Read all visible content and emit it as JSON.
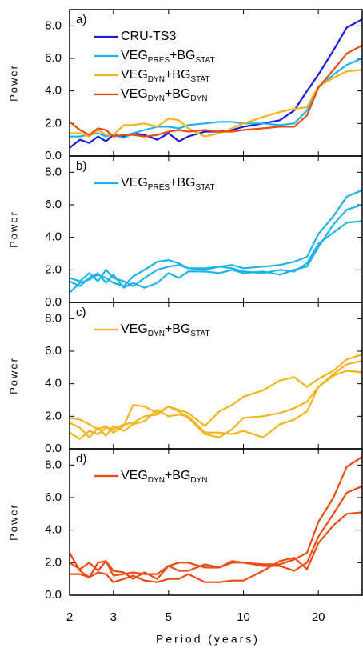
{
  "chart_data": [
    {
      "type": "line",
      "panel_label": "a)",
      "ylabel": "Power",
      "xscale": "log",
      "xlim": [
        2,
        30
      ],
      "ylim": [
        0,
        9
      ],
      "yticks": [
        {
          "value": 0,
          "label": "0.0"
        },
        {
          "value": 2,
          "label": "2.0"
        },
        {
          "value": 4,
          "label": "4.0"
        },
        {
          "value": 6,
          "label": "6.0"
        },
        {
          "value": 8,
          "label": "8.0"
        }
      ],
      "x": [
        2,
        2.2,
        2.4,
        2.6,
        2.8,
        3,
        3.3,
        3.6,
        4,
        4.5,
        5,
        5.5,
        6,
        7,
        8,
        9,
        10,
        12,
        14,
        16,
        18,
        20,
        23,
        26,
        30
      ],
      "legend": [
        {
          "parts": [
            "CRU-TS3"
          ],
          "color": "#1a1adc"
        },
        {
          "parts": [
            "VEG",
            "PRES",
            "+BG",
            "STAT"
          ],
          "color": "#1eb4ea"
        },
        {
          "parts": [
            "VEG",
            "DYN",
            "+BG",
            "STAT"
          ],
          "color": "#f5b41e"
        },
        {
          "parts": [
            "VEG",
            "DYN",
            "+BG",
            "DYN"
          ],
          "color": "#ee4a14"
        }
      ],
      "series": [
        {
          "color": "#1a1adc",
          "values": [
            0.5,
            1.0,
            0.8,
            1.2,
            0.9,
            1.3,
            1.2,
            1.4,
            1.3,
            1.0,
            1.4,
            0.9,
            1.2,
            1.5,
            1.5,
            1.6,
            1.8,
            2.0,
            2.2,
            2.8,
            4.0,
            5.0,
            6.5,
            7.9,
            8.4
          ]
        },
        {
          "color": "#1eb4ea",
          "values": [
            1.2,
            1.2,
            1.3,
            1.4,
            1.2,
            1.3,
            1.1,
            1.4,
            1.6,
            1.8,
            1.8,
            1.7,
            1.9,
            2.0,
            2.1,
            2.1,
            2.0,
            2.0,
            1.9,
            2.0,
            2.8,
            4.2,
            5.0,
            5.6,
            6.0
          ]
        },
        {
          "color": "#f5b41e",
          "values": [
            1.4,
            1.4,
            1.2,
            1.6,
            1.3,
            1.3,
            1.9,
            1.9,
            2.0,
            1.8,
            2.3,
            2.2,
            1.7,
            1.2,
            1.4,
            1.7,
            2.0,
            2.4,
            2.7,
            2.9,
            3.0,
            4.3,
            4.8,
            5.2,
            5.3
          ]
        },
        {
          "color": "#ee4a14",
          "values": [
            2.1,
            1.6,
            1.3,
            1.7,
            1.6,
            1.2,
            1.3,
            1.3,
            1.2,
            1.3,
            1.5,
            1.6,
            1.5,
            1.6,
            1.5,
            1.5,
            1.6,
            1.7,
            1.8,
            1.8,
            2.5,
            4.2,
            5.3,
            6.3,
            6.8
          ]
        }
      ]
    },
    {
      "type": "line",
      "panel_label": "b)",
      "ylabel": "Power",
      "xscale": "log",
      "xlim": [
        2,
        30
      ],
      "ylim": [
        0,
        9
      ],
      "yticks": [
        {
          "value": 0,
          "label": "0.0"
        },
        {
          "value": 2,
          "label": "2.0"
        },
        {
          "value": 4,
          "label": "4.0"
        },
        {
          "value": 6,
          "label": "6.0"
        },
        {
          "value": 8,
          "label": "8.0"
        }
      ],
      "x": [
        2,
        2.2,
        2.4,
        2.6,
        2.8,
        3,
        3.3,
        3.6,
        4,
        4.5,
        5,
        5.5,
        6,
        7,
        8,
        9,
        10,
        12,
        14,
        16,
        18,
        20,
        23,
        26,
        30
      ],
      "legend": [
        {
          "parts": [
            "VEG",
            "PRES",
            "+BG",
            "STAT"
          ],
          "color": "#1eb4ea"
        }
      ],
      "series": [
        {
          "color": "#1eb4ea",
          "values": [
            0.6,
            1.2,
            1.4,
            1.7,
            1.5,
            1.2,
            1.0,
            1.6,
            2.0,
            2.5,
            2.6,
            2.4,
            2.1,
            2.0,
            2.2,
            2.3,
            2.1,
            2.2,
            2.3,
            2.5,
            2.8,
            4.2,
            5.3,
            6.5,
            6.9
          ]
        },
        {
          "color": "#1eb4ea",
          "values": [
            1.5,
            1.3,
            1.8,
            1.3,
            2.0,
            1.5,
            1.3,
            1.0,
            1.5,
            2.0,
            2.2,
            2.3,
            2.1,
            2.1,
            2.2,
            2.1,
            1.9,
            1.8,
            2.0,
            1.9,
            2.4,
            3.6,
            4.3,
            4.9,
            5.0
          ]
        },
        {
          "color": "#1eb4ea",
          "values": [
            1.3,
            1.0,
            1.5,
            1.8,
            1.2,
            1.7,
            0.9,
            1.2,
            0.9,
            1.2,
            1.8,
            1.5,
            1.9,
            1.9,
            1.8,
            2.0,
            1.8,
            1.9,
            1.7,
            2.0,
            2.2,
            3.4,
            4.8,
            5.7,
            6.0
          ]
        }
      ]
    },
    {
      "type": "line",
      "panel_label": "c)",
      "ylabel": "Power",
      "xscale": "log",
      "xlim": [
        2,
        30
      ],
      "ylim": [
        0,
        9
      ],
      "yticks": [
        {
          "value": 0,
          "label": "0.0"
        },
        {
          "value": 2,
          "label": "2.0"
        },
        {
          "value": 4,
          "label": "4.0"
        },
        {
          "value": 6,
          "label": "6.0"
        },
        {
          "value": 8,
          "label": "8.0"
        }
      ],
      "x": [
        2,
        2.2,
        2.4,
        2.6,
        2.8,
        3,
        3.3,
        3.6,
        4,
        4.5,
        5,
        5.5,
        6,
        7,
        8,
        9,
        10,
        12,
        14,
        16,
        18,
        20,
        23,
        26,
        30
      ],
      "legend": [
        {
          "parts": [
            "VEG",
            "DYN",
            "+BG",
            "STAT"
          ],
          "color": "#f5b41e"
        }
      ],
      "series": [
        {
          "color": "#f5b41e",
          "values": [
            1.9,
            1.8,
            1.5,
            1.2,
            1.4,
            1.0,
            1.4,
            2.7,
            2.6,
            2.2,
            2.6,
            2.4,
            2.2,
            1.4,
            2.3,
            2.7,
            3.2,
            3.6,
            4.2,
            4.4,
            3.8,
            4.3,
            4.8,
            5.5,
            5.8
          ]
        },
        {
          "color": "#f5b41e",
          "values": [
            1.0,
            0.6,
            1.1,
            0.9,
            1.3,
            1.2,
            1.5,
            1.6,
            2.0,
            2.1,
            2.6,
            2.3,
            1.9,
            0.9,
            0.7,
            1.2,
            1.9,
            2.0,
            2.2,
            2.5,
            2.9,
            3.8,
            4.6,
            5.2,
            5.4
          ]
        },
        {
          "color": "#f5b41e",
          "values": [
            1.6,
            1.3,
            0.7,
            1.3,
            0.8,
            1.4,
            1.1,
            1.5,
            1.7,
            2.4,
            2.0,
            2.1,
            2.0,
            1.0,
            1.0,
            0.9,
            1.1,
            0.7,
            1.5,
            1.8,
            2.3,
            3.8,
            4.5,
            4.8,
            4.7
          ]
        }
      ]
    },
    {
      "type": "line",
      "panel_label": "d)",
      "ylabel": "Power",
      "xlabel": "Period (years)",
      "xscale": "log",
      "xlim": [
        2,
        30
      ],
      "ylim": [
        0,
        9
      ],
      "xticks": [
        2,
        3,
        5,
        10,
        20
      ],
      "yticks": [
        {
          "value": 0,
          "label": "0.0"
        },
        {
          "value": 2,
          "label": "2.0"
        },
        {
          "value": 4,
          "label": "4.0"
        },
        {
          "value": 6,
          "label": "6.0"
        },
        {
          "value": 8,
          "label": "8.0"
        }
      ],
      "x": [
        2,
        2.2,
        2.4,
        2.6,
        2.8,
        3,
        3.3,
        3.6,
        4,
        4.5,
        5,
        5.5,
        6,
        7,
        8,
        9,
        10,
        12,
        14,
        16,
        18,
        20,
        23,
        26,
        30
      ],
      "legend": [
        {
          "parts": [
            "VEG",
            "DYN",
            "+BG",
            "DYN"
          ],
          "color": "#ee4a14"
        }
      ],
      "series": [
        {
          "color": "#ee4a14",
          "values": [
            2.6,
            1.5,
            1.1,
            2.0,
            2.1,
            1.5,
            1.4,
            1.0,
            1.4,
            1.0,
            1.8,
            2.0,
            2.0,
            1.7,
            1.7,
            2.0,
            2.0,
            1.9,
            1.9,
            2.2,
            2.6,
            4.5,
            6.0,
            7.9,
            8.5
          ]
        },
        {
          "color": "#ee4a14",
          "values": [
            2.0,
            1.6,
            2.0,
            1.5,
            2.1,
            1.2,
            1.3,
            1.4,
            1.3,
            1.3,
            1.8,
            1.5,
            1.5,
            1.9,
            1.7,
            2.1,
            2.0,
            1.8,
            1.8,
            1.5,
            2.0,
            3.6,
            5.0,
            6.3,
            6.7
          ]
        },
        {
          "color": "#ee4a14",
          "values": [
            1.3,
            1.3,
            1.1,
            1.4,
            1.3,
            0.8,
            1.0,
            1.2,
            0.9,
            0.8,
            1.0,
            1.0,
            1.3,
            0.8,
            0.8,
            0.9,
            0.9,
            1.5,
            2.1,
            2.3,
            1.6,
            3.2,
            4.3,
            5.0,
            5.1
          ]
        }
      ]
    }
  ]
}
